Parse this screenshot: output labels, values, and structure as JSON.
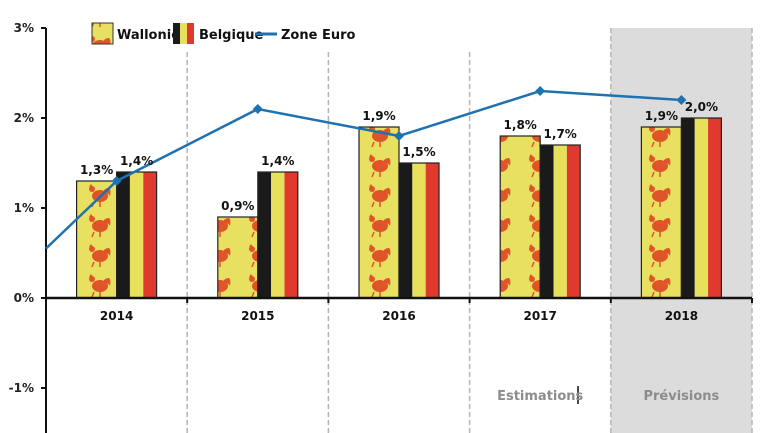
{
  "chart_data": {
    "type": "bar",
    "title": "",
    "xlabel": "",
    "ylabel": "",
    "categories": [
      "2014",
      "2015",
      "2016",
      "2017",
      "2018"
    ],
    "ylim": [
      -1.5,
      3
    ],
    "yticks": [
      3,
      2,
      1,
      0,
      -1
    ],
    "ytick_labels": [
      "3%",
      "2%",
      "1%",
      "0%",
      "-1%"
    ],
    "grid": false,
    "legend_position": "top",
    "series": [
      {
        "name": "Wallonie",
        "type": "bar",
        "values": [
          1.3,
          0.9,
          1.9,
          1.8,
          1.9
        ],
        "labels": [
          "1,3%",
          "0,9%",
          "1,9%",
          "1,8%",
          "1,9%"
        ],
        "color": "#e8e060",
        "pattern": "wallonia-rooster-flag"
      },
      {
        "name": "Belgique",
        "type": "bar",
        "values": [
          1.4,
          1.4,
          1.5,
          1.7,
          2.0
        ],
        "labels": [
          "1,4%",
          "1,4%",
          "1,5%",
          "1,7%",
          "2,0%"
        ],
        "colors": [
          "#1a1a1a",
          "#e6e05a",
          "#e03a2e"
        ],
        "pattern": "belgian-flag"
      },
      {
        "name": "Zone Euro",
        "type": "line",
        "values": [
          1.3,
          2.1,
          1.8,
          2.3,
          2.2
        ],
        "start_value": 0.55,
        "color": "#1f72b0"
      }
    ],
    "annotations": [
      {
        "text": "Estimations",
        "category": "2017"
      },
      {
        "text": "Prévisions",
        "category": "2018",
        "shaded": true,
        "shade_color": "#dcdcdc"
      }
    ]
  }
}
